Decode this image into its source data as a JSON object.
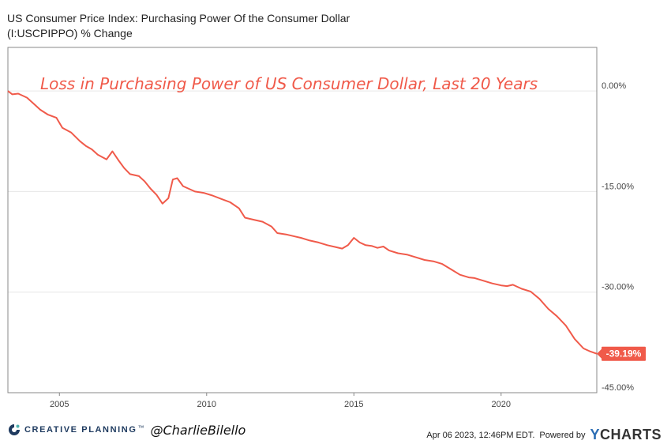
{
  "title": "US Consumer Price Index: Purchasing Power Of the Consumer Dollar (I:USCPIPPO) % Change",
  "annotation": "Loss in Purchasing Power of US Consumer Dollar, Last 20 Years",
  "footer": {
    "brand": "CREATIVE PLANNING",
    "brand_mark": "™",
    "handle": "@CharlieBilello",
    "timestamp": "Apr 06 2023, 12:46PM EDT.",
    "powered_by": "Powered by",
    "provider_y": "Y",
    "provider_rest": "CHARTS"
  },
  "colors": {
    "line": "#f05a4a",
    "grid": "#e6e6e6",
    "label_bg": "#f05a4a",
    "annotation": "#f05a4a"
  },
  "icons": {
    "brand": "creative-planning-logo-icon"
  },
  "chart_data": {
    "type": "line",
    "x_ticks": [
      "2005",
      "2010",
      "2015",
      "2020"
    ],
    "x_tick_values": [
      2005,
      2010,
      2015,
      2020
    ],
    "y_ticks": [
      0,
      -15,
      -30,
      -45
    ],
    "y_tick_labels": [
      "0.00%",
      "-15.00%",
      "-30.00%",
      "-45.00%"
    ],
    "xlim": [
      2003.25,
      2023.25
    ],
    "ylim": [
      -45,
      6.5
    ],
    "last_value_label": "-39.19%",
    "grid": true,
    "series": [
      {
        "x": [
          2003.25,
          2003.4,
          2003.6,
          2003.9,
          2004.1,
          2004.35,
          2004.6,
          2004.9,
          2005.1,
          2005.4,
          2005.7,
          2005.9,
          2006.1,
          2006.3,
          2006.6,
          2006.8,
          2007.0,
          2007.2,
          2007.4,
          2007.7,
          2007.9,
          2008.1,
          2008.3,
          2008.5,
          2008.7,
          2008.85,
          2009.0,
          2009.2,
          2009.4,
          2009.6,
          2009.9,
          2010.2,
          2010.5,
          2010.8,
          2011.1,
          2011.3,
          2011.6,
          2011.9,
          2012.2,
          2012.4,
          2012.7,
          2013.0,
          2013.2,
          2013.5,
          2013.8,
          2014.1,
          2014.4,
          2014.6,
          2014.8,
          2015.0,
          2015.2,
          2015.4,
          2015.6,
          2015.8,
          2016.0,
          2016.2,
          2016.5,
          2016.8,
          2017.1,
          2017.4,
          2017.7,
          2018.0,
          2018.3,
          2018.6,
          2018.9,
          2019.1,
          2019.4,
          2019.7,
          2020.0,
          2020.2,
          2020.4,
          2020.7,
          2021.0,
          2021.3,
          2021.6,
          2021.9,
          2022.2,
          2022.5,
          2022.8,
          2023.0,
          2023.25
        ],
        "y": [
          0.0,
          -0.5,
          -0.4,
          -1.0,
          -1.8,
          -2.8,
          -3.5,
          -4.0,
          -5.5,
          -6.2,
          -7.5,
          -8.2,
          -8.7,
          -9.5,
          -10.2,
          -9.0,
          -10.3,
          -11.5,
          -12.4,
          -12.7,
          -13.5,
          -14.6,
          -15.5,
          -16.8,
          -16.0,
          -13.2,
          -13.0,
          -14.2,
          -14.6,
          -15.0,
          -15.2,
          -15.6,
          -16.1,
          -16.6,
          -17.5,
          -18.9,
          -19.2,
          -19.5,
          -20.2,
          -21.2,
          -21.4,
          -21.7,
          -21.9,
          -22.3,
          -22.6,
          -23.0,
          -23.3,
          -23.5,
          -23.0,
          -21.9,
          -22.6,
          -23.0,
          -23.1,
          -23.4,
          -23.2,
          -23.8,
          -24.2,
          -24.4,
          -24.8,
          -25.2,
          -25.4,
          -25.8,
          -26.6,
          -27.4,
          -27.8,
          -27.9,
          -28.3,
          -28.7,
          -29.0,
          -29.1,
          -28.9,
          -29.5,
          -29.9,
          -31.0,
          -32.5,
          -33.6,
          -35.0,
          -37.0,
          -38.4,
          -38.8,
          -39.19
        ]
      }
    ]
  }
}
